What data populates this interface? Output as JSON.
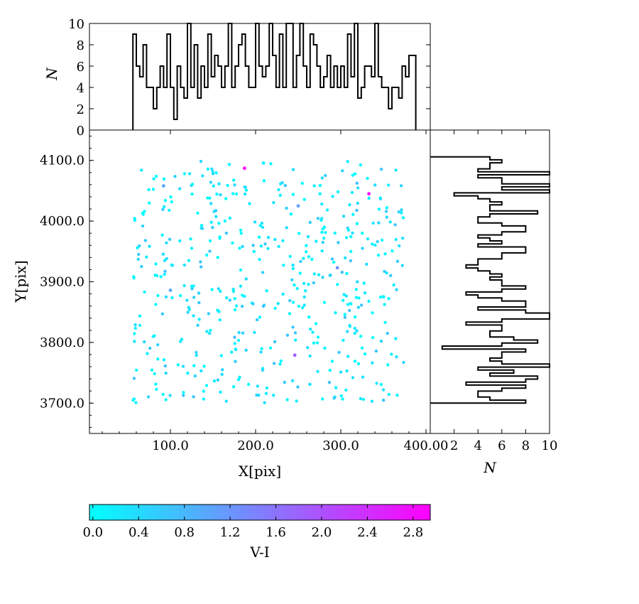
{
  "chart_data": [
    {
      "id": "scatter",
      "type": "scatter",
      "xlabel": "X[pix]",
      "ylabel": "Y[pix]",
      "xlim": [
        5,
        405
      ],
      "ylim": [
        3650,
        4150
      ],
      "x_ticks": [
        "100.0",
        "200.0",
        "300.0",
        "400.00"
      ],
      "x_tick_values": [
        100,
        200,
        300,
        400
      ],
      "y_ticks": [
        "3700.0",
        "3800.0",
        "3900.0",
        "4000.0",
        "4100.0"
      ],
      "y_tick_values": [
        3700,
        3800,
        3900,
        4000,
        4100
      ],
      "color_by": "V-I",
      "notable_points": [
        {
          "x": 187,
          "y": 4087,
          "vi": 2.9
        },
        {
          "x": 333,
          "y": 4045,
          "vi": 2.8
        },
        {
          "x": 246,
          "y": 3779,
          "vi": 1.9
        },
        {
          "x": 296,
          "y": 3923,
          "vi": 1.3
        },
        {
          "x": 100,
          "y": 3886,
          "vi": 1.0
        },
        {
          "x": 250,
          "y": 4025,
          "vi": 1.1
        },
        {
          "x": 92,
          "y": 4058,
          "vi": 1.0
        }
      ],
      "bulk_x_range": [
        56,
        374
      ],
      "bulk_y_range": [
        3700,
        4100
      ],
      "bulk_point_count": 500,
      "bulk_vi_range": [
        0.0,
        0.7
      ]
    },
    {
      "id": "top-hist",
      "type": "histogram-step",
      "ylabel": "N",
      "ylim": [
        0,
        10
      ],
      "y_ticks": [
        "0",
        "2",
        "4",
        "6",
        "8",
        "10"
      ],
      "y_tick_values": [
        0,
        2,
        4,
        6,
        8,
        10
      ],
      "x_edges_start": 56,
      "bin_width": 4,
      "counts": [
        9,
        6,
        5,
        8,
        4,
        4,
        2,
        4,
        6,
        4,
        9,
        4,
        1,
        6,
        4,
        3,
        10,
        4,
        8,
        3,
        6,
        4,
        9,
        5,
        7,
        6,
        4,
        6,
        10,
        4,
        6,
        8,
        9,
        6,
        4,
        4,
        10,
        6,
        5,
        6,
        10,
        7,
        4,
        9,
        4,
        10,
        10,
        4,
        7,
        10,
        6,
        4,
        9,
        8,
        6,
        4,
        5,
        7,
        4,
        6,
        4,
        6,
        4,
        9,
        5,
        10,
        3,
        4,
        6,
        6,
        5,
        10,
        5,
        4,
        4,
        2,
        4,
        4,
        3,
        6,
        5,
        7,
        7
      ]
    },
    {
      "id": "right-hist",
      "type": "histogram-step-horizontal",
      "xlabel": "N",
      "xlim": [
        0,
        10
      ],
      "x_ticks": [
        "2",
        "4",
        "6",
        "8",
        "10"
      ],
      "x_tick_values": [
        2,
        4,
        6,
        8,
        10
      ],
      "y_edges_start": 3700,
      "bin_width": 4.95,
      "counts": [
        8,
        5,
        4,
        4,
        6,
        8,
        3,
        8,
        9,
        5,
        7,
        4,
        10,
        6,
        5,
        6,
        6,
        8,
        1,
        6,
        9,
        7,
        5,
        5,
        6,
        6,
        3,
        6,
        10,
        10,
        8,
        4,
        8,
        8,
        6,
        4,
        3,
        6,
        8,
        6,
        6,
        5,
        6,
        5,
        4,
        3,
        4,
        4,
        6,
        6,
        8,
        8,
        4,
        6,
        5,
        4,
        6,
        8,
        8,
        6,
        4,
        4,
        5,
        9,
        5,
        5,
        6,
        5,
        4,
        2,
        10,
        6,
        10,
        6,
        6,
        4,
        10,
        4,
        5,
        5,
        6,
        5
      ]
    },
    {
      "id": "colorbar",
      "type": "colorbar",
      "label": "V-I",
      "range": [
        -0.03,
        2.95
      ],
      "ticks": [
        "0.0",
        "0.4",
        "0.8",
        "1.2",
        "1.6",
        "2.0",
        "2.4",
        "2.8"
      ],
      "tick_values": [
        0.0,
        0.4,
        0.8,
        1.2,
        1.6,
        2.0,
        2.4,
        2.8
      ],
      "colormap_start": "#00ffff",
      "colormap_end": "#ff00ff"
    }
  ]
}
